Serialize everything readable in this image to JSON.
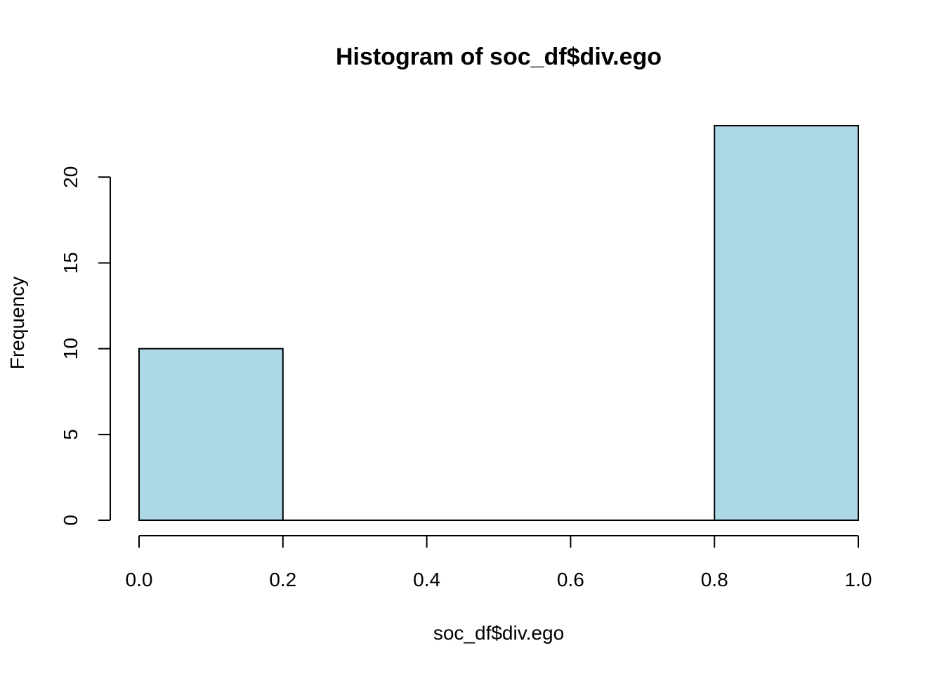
{
  "chart_data": {
    "type": "bar",
    "title": "Histogram of soc_df$div.ego",
    "xlabel": "soc_df$div.ego",
    "ylabel": "Frequency",
    "bins": [
      {
        "x0": 0.0,
        "x1": 0.2,
        "count": 10
      },
      {
        "x0": 0.2,
        "x1": 0.4,
        "count": 0
      },
      {
        "x0": 0.4,
        "x1": 0.6,
        "count": 0
      },
      {
        "x0": 0.6,
        "x1": 0.8,
        "count": 0
      },
      {
        "x0": 0.8,
        "x1": 1.0,
        "count": 23
      }
    ],
    "xlim": [
      0.0,
      1.0
    ],
    "ylim": [
      0,
      23
    ],
    "x_ticks": [
      0.0,
      0.2,
      0.4,
      0.6,
      0.8,
      1.0
    ],
    "x_tick_labels": [
      "0.0",
      "0.2",
      "0.4",
      "0.6",
      "0.8",
      "1.0"
    ],
    "y_ticks": [
      0,
      5,
      10,
      15,
      20
    ],
    "y_tick_labels": [
      "0",
      "5",
      "10",
      "15",
      "20"
    ],
    "bar_color": "#add8e6",
    "grid": false,
    "legend": "none"
  }
}
